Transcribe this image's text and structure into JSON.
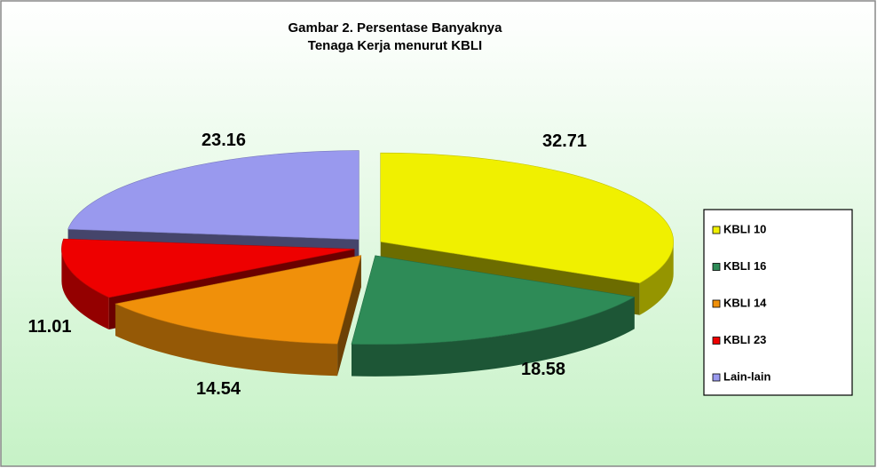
{
  "chart_data": {
    "type": "pie3d",
    "title": [
      "Gambar 2. Persentase Banyaknya",
      "Tenaga Kerja menurut KBLI"
    ],
    "categories": [
      "KBLI 10",
      "KBLI 16",
      "KBLI 14",
      "KBLI 23",
      "Lain-lain"
    ],
    "values": [
      32.71,
      18.58,
      14.54,
      11.01,
      23.16
    ],
    "colors": [
      "#f0f000",
      "#2e8b57",
      "#f0900a",
      "#ee0000",
      "#9999ee"
    ],
    "legend": "right"
  }
}
